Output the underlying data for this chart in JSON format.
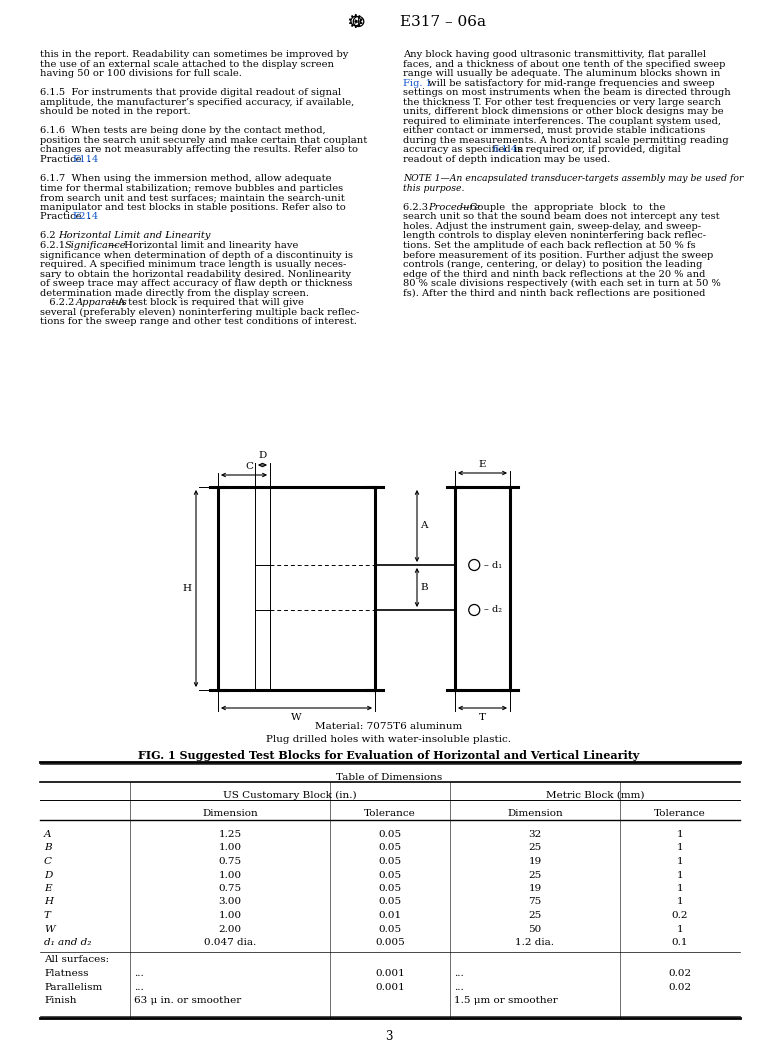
{
  "page_bg": "#ffffff",
  "left_col_lines": [
    [
      "this in the report. Readability can sometimes be improved by",
      "normal"
    ],
    [
      "the use of an external scale attached to the display screen",
      "normal"
    ],
    [
      "having 50 or 100 divisions for full scale.",
      "normal"
    ],
    [
      "",
      "normal"
    ],
    [
      "6.1.5  For instruments that provide digital readout of signal",
      "normal"
    ],
    [
      "amplitude, the manufacturer’s specified accuracy, if available,",
      "normal"
    ],
    [
      "should be noted in the report.",
      "normal"
    ],
    [
      "",
      "normal"
    ],
    [
      "6.1.6  When tests are being done by the contact method,",
      "normal"
    ],
    [
      "position the search unit securely and make certain that couplant",
      "normal"
    ],
    [
      "changes are not measurably affecting the results. Refer also to",
      "normal"
    ],
    [
      "Practice |E114|.",
      "ref"
    ],
    [
      "",
      "normal"
    ],
    [
      "6.1.7  When using the immersion method, allow adequate",
      "normal"
    ],
    [
      "time for thermal stabilization; remove bubbles and particles",
      "normal"
    ],
    [
      "from search unit and test surfaces; maintain the search-unit",
      "normal"
    ],
    [
      "manipulator and test blocks in stable positions. Refer also to",
      "normal"
    ],
    [
      "Practice |E214|.",
      "ref"
    ],
    [
      "",
      "normal"
    ],
    [
      "6.2  |Horizontal Limit and Linearity|:",
      "italic_part"
    ],
    [
      "6.2.1  |Significance|—  Horizontal limit and linearity have",
      "italic_prefix"
    ],
    [
      "significance when determination of depth of a discontinuity is",
      "normal"
    ],
    [
      "required. A specified minimum trace length is usually neces-",
      "normal"
    ],
    [
      "sary to obtain the horizontal readability desired. Nonlinearity",
      "normal"
    ],
    [
      "of sweep trace may affect accuracy of flaw depth or thickness",
      "normal"
    ],
    [
      "determination made directly from the display screen.",
      "normal"
    ],
    [
      "   6.2.2  |Apparatus|—A test block is required that will give",
      "italic_prefix"
    ],
    [
      "several (preferably eleven) noninterfering multiple back reflec-",
      "normal"
    ],
    [
      "tions for the sweep range and other test conditions of interest.",
      "normal"
    ]
  ],
  "right_col_lines": [
    [
      "Any block having good ultrasonic transmittivity, flat parallel",
      "normal"
    ],
    [
      "faces, and a thickness of about one tenth of the specified sweep",
      "normal"
    ],
    [
      "range will usually be adequate. The aluminum blocks shown in",
      "normal"
    ],
    [
      "|Fig. 1| will be satisfactory for mid-range frequencies and sweep",
      "ref"
    ],
    [
      "settings on most instruments when the beam is directed through",
      "normal"
    ],
    [
      "the thickness T. For other test frequencies or very large search",
      "normal"
    ],
    [
      "units, different block dimensions or other block designs may be",
      "normal"
    ],
    [
      "required to eliminate interferences. The couplant system used,",
      "normal"
    ],
    [
      "either contact or immersed, must provide stable indications",
      "normal"
    ],
    [
      "during the measurements. A horizontal scale permitting reading",
      "normal"
    ],
    [
      "accuracy as specified in |6.1.4| is required or, if provided, digital",
      "ref"
    ],
    [
      "readout of depth indication may be used.",
      "normal"
    ],
    [
      "",
      "normal"
    ],
    [
      "NOTE 1—An encapsulated transducer-targets assembly may be used for",
      "note"
    ],
    [
      "this purpose.",
      "note"
    ],
    [
      "",
      "normal"
    ],
    [
      "6.2.3  |Procedure|—Couple  the  appropriate  block  to  the",
      "italic_prefix"
    ],
    [
      "search unit so that the sound beam does not intercept any test",
      "normal"
    ],
    [
      "holes. Adjust the instrument gain, sweep-delay, and sweep-",
      "normal"
    ],
    [
      "length controls to display eleven noninterfering back reflec-",
      "normal"
    ],
    [
      "tions. Set the amplitude of each back reflection at 50 % fs",
      "normal"
    ],
    [
      "before measurement of its position. Further adjust the sweep",
      "normal"
    ],
    [
      "controls (range, centering, or delay) to position the leading",
      "normal"
    ],
    [
      "edge of the third and ninth back reflections at the 20 % and",
      "normal"
    ],
    [
      "80 % scale divisions respectively (with each set in turn at 50 %",
      "normal"
    ],
    [
      "fs). After the third and ninth back reflections are positioned",
      "normal"
    ]
  ],
  "fig_caption_line1": "Material: 7075T6 aluminum",
  "fig_caption_line2": "Plug drilled holes with water-insoluble plastic.",
  "fig_caption_bold": "FIG. 1 Suggested Test Blocks for Evaluation of Horizontal and Vertical Linearity",
  "table_title": "Table of Dimensions",
  "table_rows": [
    [
      "A",
      "1.25",
      "0.05",
      "32",
      "1"
    ],
    [
      "B",
      "1.00",
      "0.05",
      "25",
      "1"
    ],
    [
      "C",
      "0.75",
      "0.05",
      "19",
      "1"
    ],
    [
      "D",
      "1.00",
      "0.05",
      "25",
      "1"
    ],
    [
      "E",
      "0.75",
      "0.05",
      "19",
      "1"
    ],
    [
      "H",
      "3.00",
      "0.05",
      "75",
      "1"
    ],
    [
      "T",
      "1.00",
      "0.01",
      "25",
      "0.2"
    ],
    [
      "W",
      "2.00",
      "0.05",
      "50",
      "1"
    ],
    [
      "d₁ and d₂",
      "0.047 dia.",
      "0.005",
      "1.2 dia.",
      "0.1"
    ]
  ],
  "table_surface_rows": [
    [
      "All surfaces:",
      "",
      "",
      "",
      ""
    ],
    [
      "Flatness",
      "...",
      "0.001",
      "...",
      "0.02"
    ],
    [
      "Parallelism",
      "...",
      "0.001",
      "...",
      "0.02"
    ],
    [
      "Finish",
      "63 μ in. or smoother",
      "",
      "1.5 μm or smoother",
      ""
    ]
  ],
  "page_number": "3",
  "ref_color": "#1155CC"
}
